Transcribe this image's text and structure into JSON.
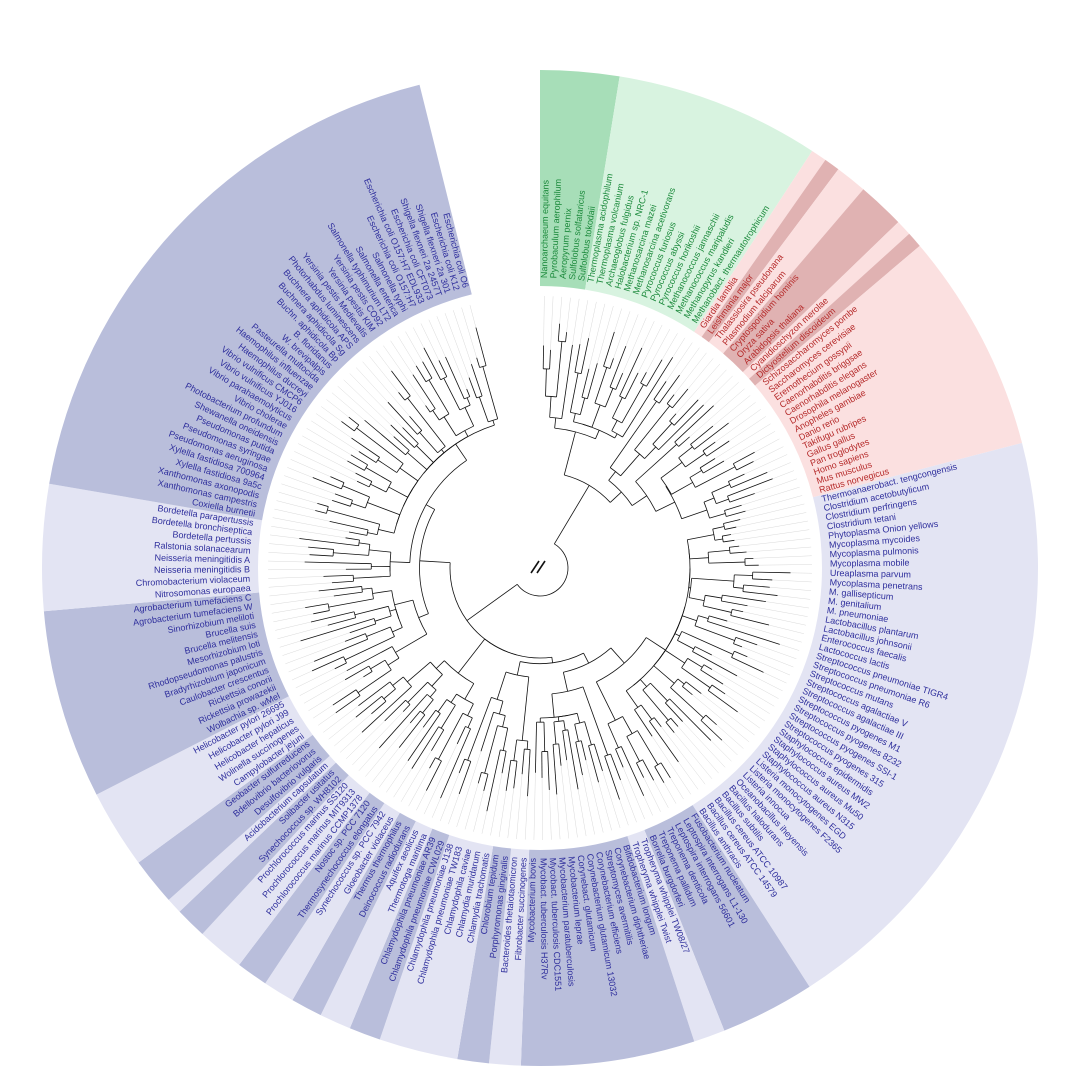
{
  "colors": {
    "bacteria_dark": "#b9bedb",
    "bacteria_light": "#e3e4f3",
    "archaea_dark": "#a7deb8",
    "archaea_light": "#d8f3e0",
    "eukaryota_dark": "#e0b2b2",
    "eukaryota_light": "#fbe0e0",
    "bacteria_text": "#2e2e9c",
    "archaea_text": "#1c8a3c",
    "eukaryota_text": "#b52a2a",
    "branch": "#111111"
  },
  "tree": {
    "sectors": [
      {
        "domain": "archaea",
        "shade": "dark",
        "labels": [
          "Nanoarchaeum equitans",
          "Pyrobaculum aerophilum",
          "Aeropyrum pernix",
          "Sulfolobus solfataricus",
          "Sulfolobus tokodaii"
        ]
      },
      {
        "domain": "archaea",
        "shade": "light",
        "labels": [
          "Thermoplasma acidophilum",
          "Thermoplasma volcanium",
          "Archaeoglobus fulgidus",
          "Halobacterium sp. NRC-1",
          "Methanosarcina mazei",
          "Methanosarcina acetivorans",
          "Pyrococcus furiosus",
          "Pyrococcus abyssi",
          "Pyrococcus horikoshii",
          "Methanococcus jannaschii",
          "Methanococcus maripaludis",
          "Methanopyrus kandleri",
          "Methanobact. thermautotrophicum"
        ]
      },
      {
        "domain": "eukaryota",
        "shade": "light",
        "labels": [
          "Giardia lamblia"
        ]
      },
      {
        "domain": "eukaryota",
        "shade": "dark",
        "labels": [
          "Leishmania major"
        ]
      },
      {
        "domain": "eukaryota",
        "shade": "light",
        "labels": [
          "Thalassiosira pseudonana",
          "Plasmodium falciparum"
        ]
      },
      {
        "domain": "eukaryota",
        "shade": "dark",
        "labels": [
          "Cryptosporidium hominis",
          "Oryza sativa",
          "Arabidopsis thaliana"
        ]
      },
      {
        "domain": "eukaryota",
        "shade": "light",
        "labels": [
          "Cyanidioschyzon merolae"
        ]
      },
      {
        "domain": "eukaryota",
        "shade": "dark",
        "labels": [
          "Dictyostelium discoideum"
        ]
      },
      {
        "domain": "eukaryota",
        "shade": "light",
        "labels": [
          "Schizosaccharomyces pombe",
          "Saccharomyces cerevisiae",
          "Eremothecium gossypii",
          "Caenorhabditis briggsae",
          "Caenorhabditis elegans",
          "Drosophila melanogaster",
          "Anopheles gambiae",
          "Danio rerio",
          "Takifugu rubripes",
          "Gallus gallus",
          "Pan troglodytes",
          "Homo sapiens",
          "Mus musculus",
          "Rattus norvegicus"
        ]
      },
      {
        "domain": "bacteria",
        "shade": "light",
        "labels": [
          "Thermoanaerobact. tengcongensis",
          "Clostridium acetobutylicum",
          "Clostridium perfringens",
          "Clostridium tetani",
          "Phytoplasma Onion yellows",
          "Mycoplasma mycoides",
          "Mycoplasma pulmonis",
          "Mycoplasma mobile",
          "Ureaplasma parvum",
          "Mycoplasma penetrans",
          "M. gallisepticum",
          "M. genitalium",
          "M. pneumoniae",
          "Lactobacillus plantarum",
          "Lactobacillus johnsonii",
          "Enterococcus faecalis",
          "Lactococcus lactis",
          "Streptococcus pneumoniae TIGR4",
          "Streptococcus pneumoniae R6",
          "Streptococcus mutans",
          "Streptococcus agalactiae V",
          "Streptococcus agalactiae III",
          "Streptococcus pyogenes M1",
          "Streptococcus pyogenes 8232",
          "Streptococcus pyogenes SSI-1",
          "Streptococcus pyogenes 315",
          "Staphylococcus epidermidis",
          "Staphylococcus aureus MW2",
          "Staphylococcus aureus Mu50",
          "Staphylococcus aureus N315",
          "Listeria monocytogenes EGD",
          "Listeria monocytogenes F2365",
          "Listeria innocua",
          "Oceanobacillus iheyensis",
          "Bacillus halodurans",
          "Bacillus subtilis",
          "Bacillus cereus ATCC 10987",
          "Bacillus cereus ATCC 14579",
          "Bacillus anthracis"
        ]
      },
      {
        "domain": "bacteria",
        "shade": "dark",
        "labels": [
          "Fusobacterium nucleatum",
          "Leptospira interrogans L1-130",
          "Leptospira interrogans 56601",
          "Treponema denticola",
          "Treponema pallidum",
          "Borrelia burgdorferi"
        ]
      },
      {
        "domain": "bacteria",
        "shade": "light",
        "labels": [
          "Tropheryma whipplei TW08/27",
          "Tropheryma whipplei Twist"
        ]
      },
      {
        "domain": "bacteria",
        "shade": "dark",
        "labels": [
          "Bifidobacterium longum",
          "Corynebacterium diphtheriae",
          "Streptomyces avermitilis",
          "Corynebacterium efficiens",
          "Corynebacterium glutamicum 13032",
          "Corynebact. glutamicum",
          "Mycobacterium leprae",
          "Mycobacterium paratuberculosis",
          "Mycobact. tuberculosis CDC1551",
          "Mycobact. tuberculosis H37Rv",
          "Mycobacterium bovis"
        ]
      },
      {
        "domain": "bacteria",
        "shade": "light",
        "labels": [
          "Fibrobacter succinogenes",
          "Bacteroides thetaiotaomicron"
        ]
      },
      {
        "domain": "bacteria",
        "shade": "dark",
        "labels": [
          "Porphyromonas gingivalis",
          "Chlorobium tepidum"
        ]
      },
      {
        "domain": "bacteria",
        "shade": "light",
        "labels": [
          "Chlamydia trachomatis",
          "Chlamydia muridarum",
          "Chlamydophila caviae",
          "Chlamydophila pneumoniae TW183",
          "Chlamydophila pneumoniae J138"
        ]
      },
      {
        "domain": "bacteria",
        "shade": "dark",
        "labels": [
          "Chlamydophila pneumoniae CWL029",
          "Chlamydophila pneumoniae AR39"
        ]
      },
      {
        "domain": "bacteria",
        "shade": "light",
        "labels": [
          "Thermotoga maritima",
          "Aquifex aeolicus"
        ]
      },
      {
        "domain": "bacteria",
        "shade": "dark",
        "labels": [
          "Deinococcus radiodurans",
          "Thermus thermophilus"
        ]
      },
      {
        "domain": "bacteria",
        "shade": "light",
        "labels": [
          "Gloeobacter violaceus",
          "Synechococcus sp. PCC 7942"
        ]
      },
      {
        "domain": "bacteria",
        "shade": "dark",
        "labels": [
          "Thermosynechococcus elongatus",
          "Nostoc sp. PCC 7120"
        ]
      },
      {
        "domain": "bacteria",
        "shade": "light",
        "labels": [
          "Prochlorococcus marinus CCMP1378",
          "Prochlorococcus marinus MIT9313",
          "Prochlorococcus marinus SS120"
        ]
      },
      {
        "domain": "bacteria",
        "shade": "dark",
        "labels": [
          "Synechococcus sp. WH8102",
          "Solibacter usitatus"
        ]
      },
      {
        "domain": "bacteria",
        "shade": "light",
        "labels": [
          "Acidobacterium capsulatum"
        ]
      },
      {
        "domain": "bacteria",
        "shade": "dark",
        "labels": [
          "Desulfovibrio vulgaris",
          "Bdellovibrio bacteriovorus",
          "Geobacter sulfurreducens"
        ]
      },
      {
        "domain": "bacteria",
        "shade": "light",
        "labels": [
          "Campylobacter jejuni",
          "Wolinella succinogenes",
          "Helicobacter hepaticus",
          "Helicobacter pylori J99",
          "Helicobacter pylori 26695"
        ]
      },
      {
        "domain": "bacteria",
        "shade": "dark",
        "labels": [
          "Wolbachia sp. wMel",
          "Rickettsia prowazekii",
          "Rickettsia conorii",
          "Caulobacter crescentus",
          "Bradyrhizobium japonicum",
          "Rhodopseudomonas palustris",
          "Mesorhizobium loti",
          "Brucella melitensis",
          "Brucella suis",
          "Sinorhizobium meliloti",
          "Agrobacterium tumefaciens W",
          "Agrobacterium tumefaciens C"
        ]
      },
      {
        "domain": "bacteria",
        "shade": "light",
        "labels": [
          "Nitrosomonas europaea",
          "Chromobacterium violaceum",
          "Neisseria meningitidis B",
          "Neisseria meningitidis A",
          "Ralstonia solanacearum",
          "Bordetella pertussis",
          "Bordetella bronchiseptica",
          "Bordetella parapertussis"
        ]
      },
      {
        "domain": "bacteria",
        "shade": "dark",
        "labels": [
          "Coxiella burnetii",
          "Xanthomonas campestris",
          "Xanthomonas axonopodis",
          "Xylella fastidiosa 9a5c",
          "Xylella fastidiosa 700964",
          "Pseudomonas aeruginosa",
          "Pseudomonas syringae",
          "Pseudomonas putida",
          "Shewanella oneidensis",
          "Photobacterium profundum",
          "Vibrio cholerae",
          "Vibrio parahaemolyticus",
          "Vibrio vulnificus YJ016",
          "Vibrio vulnificus CMCP6",
          "Haemophilus ducreyi",
          "Haemophilus influenzae",
          "Pasteurella multocida",
          "W. brevipalpis",
          "B. floridanus",
          "Buchn. aphidicola Bp",
          "Buchnera aphidicola Sg",
          "Buchnera aphidicola APS",
          "Photorhabdus luminescens",
          "Yersinia pestis Medievalis",
          "Yersinia pestis KIM",
          "Yersinia pestis CO92",
          "Salmonella typhimurium LT2",
          "Salmonella enterica",
          "Salmonella typhi",
          "Escherichia coli O157:H7",
          "Escherichia coli O157:H7 EDL933",
          "Escherichia coli CFT073",
          "Shigella flexneri 2a 2457T",
          "Shigella flexneri 2a 301",
          "Escherichia coli K12",
          "Escherichia coli O6"
        ]
      }
    ]
  }
}
